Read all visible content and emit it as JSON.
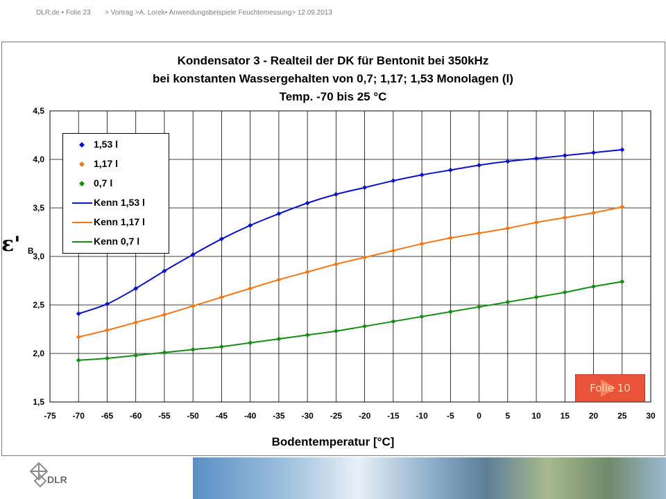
{
  "header": {
    "left": "DLR.de  •  Folie 23",
    "right": "> Vortrag >A. Lorek• Anwendungsbeispiele Feuchtemessung> 12.09.2013"
  },
  "chart_data": {
    "type": "line",
    "title": [
      "Kondensator 3 - Realteil der DK für Bentonit bei 350kHz",
      "bei konstanten Wassergehalten von 0,7; 1,17; 1,53  Monolagen (l)",
      "Temp. -70 bis 25 °C"
    ],
    "xlabel": "Bodentemperatur [°C]",
    "ylabel": "ε'",
    "ylabel_sub": "B",
    "xlim": [
      -75,
      30
    ],
    "ylim": [
      1.5,
      4.5
    ],
    "x_ticks": [
      "-75",
      "-70",
      "-65",
      "-60",
      "-55",
      "-50",
      "-45",
      "-40",
      "-35",
      "-30",
      "-25",
      "-20",
      "-15",
      "-10",
      "-5",
      "0",
      "5",
      "10",
      "15",
      "20",
      "25",
      "30"
    ],
    "y_ticks": [
      "1,5",
      "2,0",
      "2,5",
      "3,0",
      "3,5",
      "4,0",
      "4,5"
    ],
    "grid": true,
    "legend_position": "top-left",
    "x": [
      -70,
      -65,
      -60,
      -55,
      -50,
      -45,
      -40,
      -35,
      -30,
      -25,
      -20,
      -15,
      -10,
      -5,
      0,
      5,
      10,
      15,
      20,
      25
    ],
    "series": [
      {
        "name": "1,53 l",
        "color": "#0b12c9",
        "marker": "diamond",
        "values": [
          2.41,
          2.51,
          2.67,
          2.85,
          3.02,
          3.18,
          3.32,
          3.44,
          3.55,
          3.64,
          3.71,
          3.78,
          3.84,
          3.89,
          3.94,
          3.98,
          4.01,
          4.04,
          4.07,
          4.1
        ]
      },
      {
        "name": "1,17 l",
        "color": "#f47616",
        "marker": "diamond",
        "values": [
          2.17,
          2.24,
          2.32,
          2.4,
          2.49,
          2.58,
          2.67,
          2.76,
          2.84,
          2.92,
          2.99,
          3.06,
          3.13,
          3.19,
          3.24,
          3.29,
          3.35,
          3.4,
          3.45,
          3.51
        ]
      },
      {
        "name": "0,7 l",
        "color": "#148c14",
        "marker": "diamond",
        "values": [
          1.93,
          1.95,
          1.98,
          2.01,
          2.04,
          2.07,
          2.11,
          2.15,
          2.19,
          2.23,
          2.28,
          2.33,
          2.38,
          2.43,
          2.48,
          2.53,
          2.58,
          2.63,
          2.69,
          2.74
        ]
      }
    ],
    "fit_series": [
      {
        "name": "Kenn 1,53 l",
        "color": "#0b12c9"
      },
      {
        "name": "Kenn 1,17 l",
        "color": "#f47616"
      },
      {
        "name": "Kenn 0,7 l",
        "color": "#148c14"
      }
    ]
  },
  "button": {
    "label": "Folie 10",
    "color": "#e8533a"
  },
  "footer": {
    "logo_text": "DLR"
  }
}
